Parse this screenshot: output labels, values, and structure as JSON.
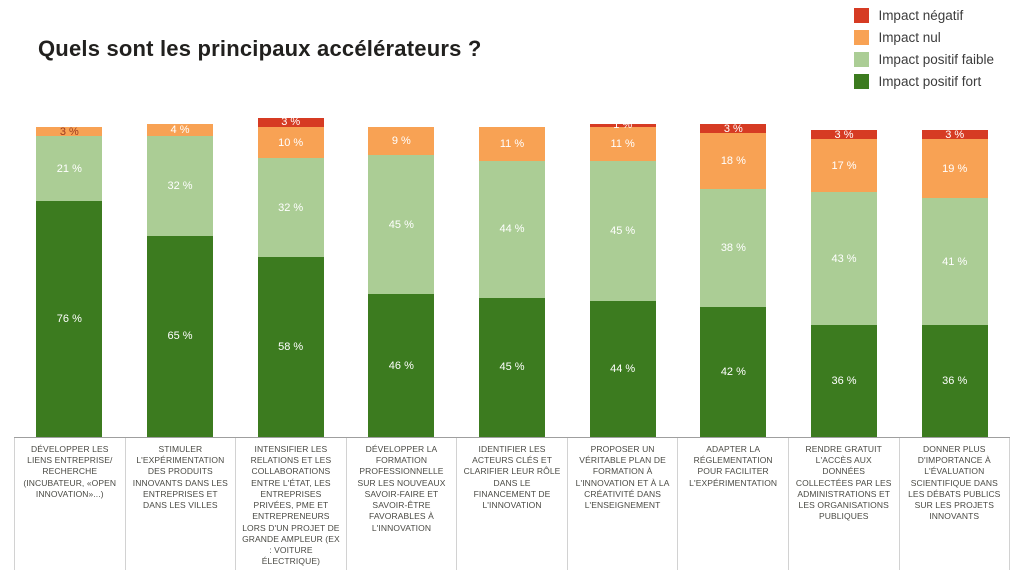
{
  "title": "Quels sont les principaux accélérateurs ?",
  "legend": [
    {
      "label": "Impact négatif",
      "color": "#d63b23"
    },
    {
      "label": "Impact nul",
      "color": "#f8a254"
    },
    {
      "label": "Impact positif faible",
      "color": "#abcd95"
    },
    {
      "label": "Impact positif fort",
      "color": "#3c7b1f"
    }
  ],
  "chart_data": {
    "type": "bar",
    "stacked": true,
    "orientation": "vertical",
    "unit": "%",
    "value_label_format": "{v} %",
    "ylim": [
      0,
      100
    ],
    "grid": false,
    "legend_position": "top-right",
    "categories": [
      "DÉVELOPPER LES LIENS ENTREPRISE/ RECHERCHE (INCUBATEUR, «OPEN INNOVATION»...)",
      "STIMULER L'EXPÉRIMENTATION DES PRODUITS INNOVANTS DANS LES ENTREPRISES ET DANS LES VILLES",
      "INTENSIFIER LES RELATIONS ET LES COLLABORATIONS ENTRE L'ÉTAT, LES ENTREPRISES PRIVÉES, PME ET ENTREPRENEURS LORS D'UN PROJET DE GRANDE AMPLEUR (EX : VOITURE ÉLECTRIQUE)",
      "DÉVELOPPER LA FORMATION PROFESSIONNELLE SUR LES NOUVEAUX SAVOIR-FAIRE ET SAVOIR-ÊTRE FAVORABLES À L'INNOVATION",
      "IDENTIFIER LES ACTEURS CLÉS ET CLARIFIER LEUR RÔLE DANS LE FINANCEMENT DE L'INNOVATION",
      "PROPOSER UN VÉRITABLE PLAN DE FORMATION À L'INNOVATION ET À LA CRÉATIVITÉ DANS L'ENSEIGNEMENT",
      "ADAPTER LA RÉGLEMENTATION POUR FACILITER L'EXPÉRIMENTATION",
      "RENDRE GRATUIT L'ACCÈS AUX DONNÉES COLLECTÉES PAR LES ADMINISTRATIONS ET LES ORGANISATIONS PUBLIQUES",
      "DONNER PLUS D'IMPORTANCE À L'ÉVALUATION SCIENTIFIQUE DANS LES DÉBATS PUBLICS SUR LES PROJETS INNOVANTS"
    ],
    "series_order": "bottom-to-top",
    "series": [
      {
        "name": "Impact positif fort",
        "color": "#3c7b1f",
        "values": [
          76,
          65,
          58,
          46,
          45,
          44,
          42,
          36,
          36
        ]
      },
      {
        "name": "Impact positif faible",
        "color": "#abcd95",
        "values": [
          21,
          32,
          32,
          45,
          44,
          45,
          38,
          43,
          41
        ]
      },
      {
        "name": "Impact nul",
        "color": "#f8a254",
        "values": [
          3,
          4,
          10,
          9,
          11,
          11,
          18,
          17,
          19
        ]
      },
      {
        "name": "Impact négatif",
        "color": "#d63b23",
        "values": [
          0,
          0,
          3,
          0,
          0,
          1,
          3,
          3,
          3
        ]
      }
    ],
    "label_overrides": [
      {
        "category": 0,
        "series": "Impact nul",
        "color": "#9c3a21"
      }
    ]
  }
}
